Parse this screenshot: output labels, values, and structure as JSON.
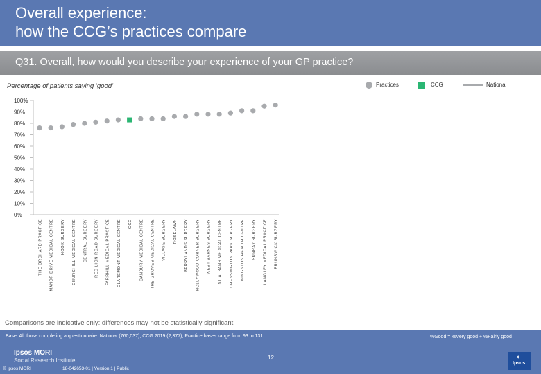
{
  "header": {
    "title_line1": "Overall experience:",
    "title_line2": "how the CCG’s practices compare"
  },
  "question": "Q31. Overall, how would you describe your experience of your GP practice?",
  "subtitle": "Percentage of patients saying ‘good’",
  "legend": {
    "practices": "Practices",
    "ccg": "CCG",
    "national": "National"
  },
  "colors": {
    "header": "#5a78b2",
    "practice": "#a8aaad",
    "ccg": "#2bb673",
    "national": "#a8aaad",
    "axis": "#bfbfbf"
  },
  "chart_data": {
    "type": "scatter",
    "title": "Percentage of patients saying ‘good’",
    "ylim": [
      0,
      100
    ],
    "yticks": [
      0,
      10,
      20,
      30,
      40,
      50,
      60,
      70,
      80,
      90,
      100
    ],
    "ytick_labels": [
      "0%",
      "10%",
      "20%",
      "30%",
      "40%",
      "50%",
      "60%",
      "70%",
      "80%",
      "90%",
      "100%"
    ],
    "categories": [
      "THE ORCHARD PRACTICE",
      "MANOR DRIVE MEDICAL CENTRE",
      "HOOK SURGERY",
      "CHURCHILL MEDICAL CENTRE",
      "CENTRAL SURGERY",
      "RED LION ROAD SURGERY",
      "FARRHILL MEDICAL PRACTICE",
      "CLAREMONT MEDICAL CENTRE",
      "CCG",
      "CANBURY MEDICAL CENTRE",
      "THE GROVES MEDICAL CENTRE",
      "VILLAGE SURGERY",
      "ROSELAWN",
      "BERRYLANDS SURGERY",
      "HOLLYWOOD CORNER SURGERY",
      "WEST BARNES SURGERY",
      "ST ALBANS MEDICAL CENTRE",
      "CHESSINGTON PARK SURGERY",
      "KINGSTON HEALTH CENTRE",
      "SUNRAY SURGERY",
      "LANGLEY MEDICAL PRACTICE",
      "BRUNSWICK SURGERY"
    ],
    "values": [
      76,
      76,
      77,
      79,
      80,
      81,
      82,
      83,
      83,
      84,
      84,
      84,
      86,
      86,
      88,
      88,
      88,
      89,
      91,
      91,
      95,
      96
    ],
    "highlight": "CCG",
    "national": null
  },
  "note": "Comparisons are indicative only: differences may not be statistically significant",
  "footer": {
    "base": "Base: All those completing a questionnaire: National (760,037); CCG 2019 (2,377); Practice bases range from 93 to 131",
    "definition": "%Good = %Very good + %Fairly good",
    "page": "12",
    "brand1": "Ipsos MORI",
    "brand2": "Social Research Institute",
    "copyright": "© Ipsos MORI",
    "job": "18-042653-01 | Version 1 | Public",
    "logo_text": "Ipsos"
  }
}
